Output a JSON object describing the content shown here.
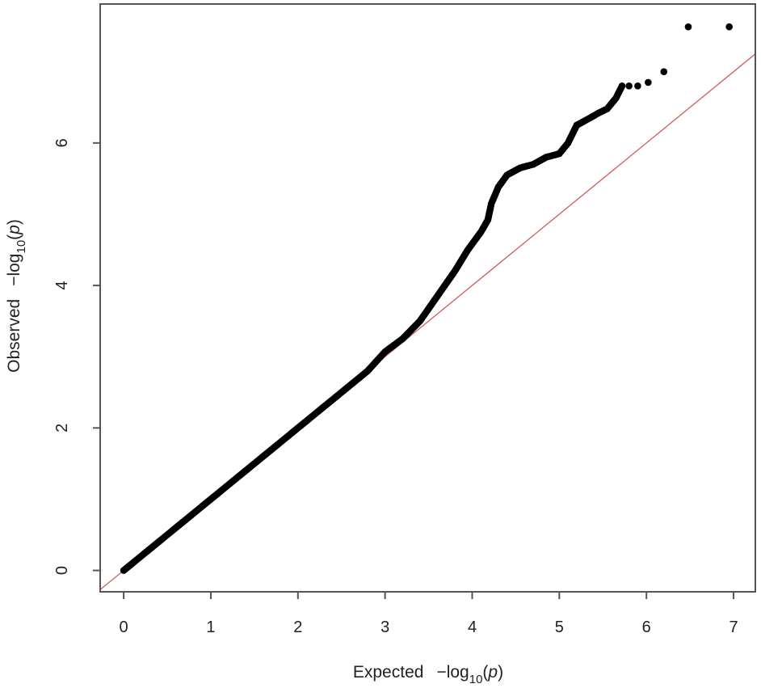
{
  "chart_data": {
    "type": "scatter",
    "title": "",
    "xlabel": {
      "main": "Expected",
      "neg": "−log",
      "sub": "10",
      "open": "(",
      "var": "p",
      "close": ")"
    },
    "ylabel": {
      "main": "Observed",
      "neg": "−log",
      "sub": "10",
      "open": "(",
      "var": "p",
      "close": ")"
    },
    "xlim": [
      -0.27,
      7.25
    ],
    "ylim": [
      -0.3,
      7.95
    ],
    "x_ticks": [
      0,
      1,
      2,
      3,
      4,
      5,
      6,
      7
    ],
    "x_tick_labels": [
      "0",
      "1",
      "2",
      "3",
      "4",
      "5",
      "6",
      "7"
    ],
    "y_ticks": [
      0,
      2,
      4,
      6
    ],
    "y_tick_labels": [
      "0",
      "2",
      "4",
      "6"
    ],
    "grid": false,
    "colors": {
      "points": "#000000",
      "reference_line": "#cd5c5c",
      "frame": "#555555",
      "text": "#222222"
    },
    "reference_line": {
      "slope": 1,
      "intercept": 0
    },
    "series": [
      {
        "points": [
          [
            0.0,
            0.0
          ],
          [
            0.5,
            0.5
          ],
          [
            1.0,
            1.0
          ],
          [
            1.5,
            1.5
          ],
          [
            2.0,
            2.0
          ],
          [
            2.5,
            2.5
          ],
          [
            2.8,
            2.8
          ],
          [
            3.0,
            3.07
          ],
          [
            3.2,
            3.25
          ],
          [
            3.4,
            3.5
          ],
          [
            3.6,
            3.85
          ],
          [
            3.8,
            4.2
          ],
          [
            3.95,
            4.5
          ],
          [
            4.1,
            4.75
          ],
          [
            4.18,
            4.92
          ],
          [
            4.22,
            5.15
          ],
          [
            4.3,
            5.38
          ],
          [
            4.4,
            5.55
          ],
          [
            4.55,
            5.65
          ],
          [
            4.7,
            5.7
          ],
          [
            4.85,
            5.8
          ],
          [
            5.0,
            5.85
          ],
          [
            5.1,
            6.0
          ],
          [
            5.2,
            6.25
          ],
          [
            5.35,
            6.35
          ],
          [
            5.45,
            6.42
          ],
          [
            5.55,
            6.48
          ],
          [
            5.65,
            6.63
          ],
          [
            5.72,
            6.8
          ],
          [
            5.8,
            6.8
          ],
          [
            5.9,
            6.8
          ],
          [
            6.02,
            6.85
          ],
          [
            6.2,
            7.0
          ],
          [
            6.48,
            7.63
          ],
          [
            6.95,
            7.63
          ]
        ]
      }
    ]
  }
}
